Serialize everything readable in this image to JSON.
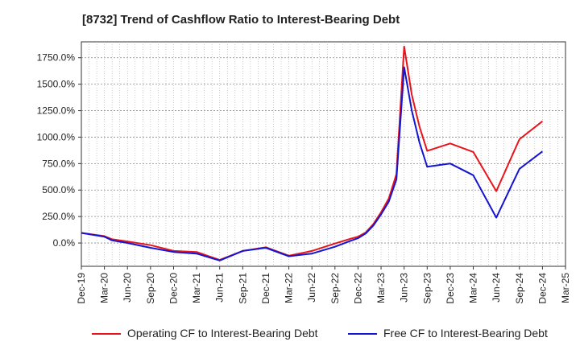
{
  "chart_data": {
    "type": "line",
    "title": "[8732]  Trend of Cashflow Ratio to Interest-Bearing Debt",
    "xlabel": "",
    "ylabel": "",
    "x_tick_labels": [
      "Dec-19",
      "Mar-20",
      "Jun-20",
      "Sep-20",
      "Dec-20",
      "Mar-21",
      "Jun-21",
      "Sep-21",
      "Dec-21",
      "Mar-22",
      "Jun-22",
      "Sep-22",
      "Dec-22",
      "Mar-23",
      "Jun-23",
      "Sep-23",
      "Dec-23",
      "Mar-24",
      "Jun-24",
      "Sep-24",
      "Dec-24",
      "Mar-25"
    ],
    "y_ticks": [
      0,
      250,
      500,
      750,
      1000,
      1250,
      1500,
      1750
    ],
    "y_tick_labels": [
      "0.0%",
      "250.0%",
      "500.0%",
      "750.0%",
      "1000.0%",
      "1250.0%",
      "1500.0%",
      "1750.0%"
    ],
    "ylim": [
      -220,
      1900
    ],
    "grid": true,
    "legend_position": "bottom",
    "series": [
      {
        "name": "Operating CF to Interest-Bearing Debt",
        "color": "#e8141b",
        "points": [
          {
            "x": "Dec-19",
            "y": 95
          },
          {
            "x": "Mar-20",
            "y": 65
          },
          {
            "x": "Apr-20",
            "y": 35
          },
          {
            "x": "Jun-20",
            "y": 15
          },
          {
            "x": "Sep-20",
            "y": -20
          },
          {
            "x": "Dec-20",
            "y": -75
          },
          {
            "x": "Mar-21",
            "y": -85
          },
          {
            "x": "Jun-21",
            "y": -160
          },
          {
            "x": "Sep-21",
            "y": -75
          },
          {
            "x": "Dec-21",
            "y": -40
          },
          {
            "x": "Mar-22",
            "y": -120
          },
          {
            "x": "Jun-22",
            "y": -75
          },
          {
            "x": "Sep-22",
            "y": -5
          },
          {
            "x": "Nov-22",
            "y": 40
          },
          {
            "x": "Dec-22",
            "y": 60
          },
          {
            "x": "Jan-23",
            "y": 100
          },
          {
            "x": "Feb-23",
            "y": 180
          },
          {
            "x": "Mar-23",
            "y": 290
          },
          {
            "x": "Apr-23",
            "y": 420
          },
          {
            "x": "May-23",
            "y": 650
          },
          {
            "x": "Jun-23",
            "y": 1855
          },
          {
            "x": "Jul-23",
            "y": 1400
          },
          {
            "x": "Aug-23",
            "y": 1100
          },
          {
            "x": "Sep-23",
            "y": 870
          },
          {
            "x": "Dec-23",
            "y": 940
          },
          {
            "x": "Mar-24",
            "y": 860
          },
          {
            "x": "Jun-24",
            "y": 490
          },
          {
            "x": "Sep-24",
            "y": 980
          },
          {
            "x": "Dec-24",
            "y": 1150
          }
        ]
      },
      {
        "name": "Free CF to Interest-Bearing Debt",
        "color": "#1414d2",
        "points": [
          {
            "x": "Dec-19",
            "y": 95
          },
          {
            "x": "Mar-20",
            "y": 60
          },
          {
            "x": "Apr-20",
            "y": 25
          },
          {
            "x": "Jun-20",
            "y": 0
          },
          {
            "x": "Sep-20",
            "y": -45
          },
          {
            "x": "Dec-20",
            "y": -85
          },
          {
            "x": "Mar-21",
            "y": -100
          },
          {
            "x": "Jun-21",
            "y": -165
          },
          {
            "x": "Sep-21",
            "y": -75
          },
          {
            "x": "Dec-21",
            "y": -45
          },
          {
            "x": "Mar-22",
            "y": -125
          },
          {
            "x": "Jun-22",
            "y": -100
          },
          {
            "x": "Sep-22",
            "y": -35
          },
          {
            "x": "Nov-22",
            "y": 20
          },
          {
            "x": "Dec-22",
            "y": 45
          },
          {
            "x": "Jan-23",
            "y": 90
          },
          {
            "x": "Feb-23",
            "y": 165
          },
          {
            "x": "Mar-23",
            "y": 270
          },
          {
            "x": "Apr-23",
            "y": 390
          },
          {
            "x": "May-23",
            "y": 600
          },
          {
            "x": "Jun-23",
            "y": 1660
          },
          {
            "x": "Jul-23",
            "y": 1250
          },
          {
            "x": "Aug-23",
            "y": 950
          },
          {
            "x": "Sep-23",
            "y": 720
          },
          {
            "x": "Dec-23",
            "y": 750
          },
          {
            "x": "Mar-24",
            "y": 640
          },
          {
            "x": "Jun-24",
            "y": 240
          },
          {
            "x": "Sep-24",
            "y": 700
          },
          {
            "x": "Dec-24",
            "y": 865
          }
        ]
      }
    ]
  }
}
